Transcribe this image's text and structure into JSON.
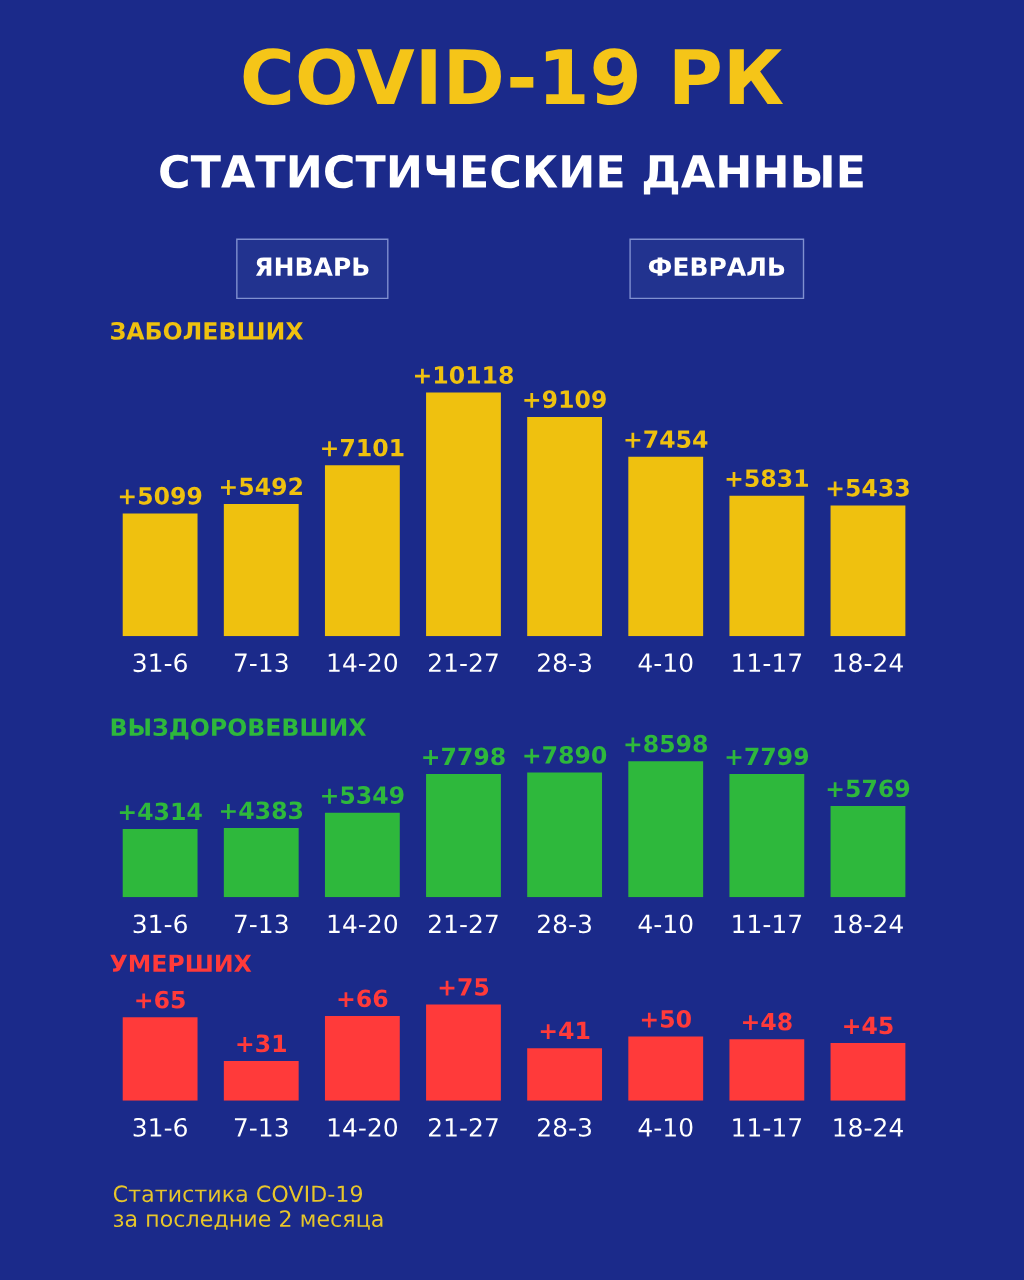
{
  "chart_data": [
    {
      "type": "bar",
      "title": "COVID-19 РК",
      "subtitle": "СТАТИСТИЧЕСКИЕ ДАННЫЕ",
      "ylabel": "ЗАБОЛЕВШИХ",
      "annotations": [
        "ЯНВАРЬ",
        "ФЕВРАЛЬ"
      ],
      "categories": [
        "31-6",
        "7-13",
        "14-20",
        "21-27",
        "28-3",
        "4-10",
        "11-17",
        "18-24"
      ],
      "values": [
        5099,
        5492,
        7101,
        10118,
        9109,
        7454,
        5831,
        5433
      ],
      "value_labels": [
        "+5099",
        "+5492",
        "+7101",
        "+10118",
        "+9109",
        "+7454",
        "+5831",
        "+5433"
      ],
      "color": "#efc10f"
    },
    {
      "type": "bar",
      "ylabel": "ВЫЗДОРОВЕВШИХ",
      "categories": [
        "31-6",
        "7-13",
        "14-20",
        "21-27",
        "28-3",
        "4-10",
        "11-17",
        "18-24"
      ],
      "values": [
        4314,
        4383,
        5349,
        7798,
        7890,
        8598,
        7799,
        5769
      ],
      "value_labels": [
        "+4314",
        "+4383",
        "+5349",
        "+7798",
        "+7890",
        "+8598",
        "+7799",
        "+5769"
      ],
      "color": "#2eb83c"
    },
    {
      "type": "bar",
      "ylabel": "УМЕРШИХ",
      "annotations": [
        "Статистика COVID-19\nза последние 2 месяца"
      ],
      "categories": [
        "31-6",
        "7-13",
        "14-20",
        "21-27",
        "28-3",
        "4-10",
        "11-17",
        "18-24"
      ],
      "values": [
        65,
        31,
        66,
        75,
        41,
        50,
        48,
        45
      ],
      "value_labels": [
        "+65",
        "+31",
        "+66",
        "+75",
        "+41",
        "+50",
        "+48",
        "+45"
      ],
      "color": "#ff3a3a"
    }
  ]
}
